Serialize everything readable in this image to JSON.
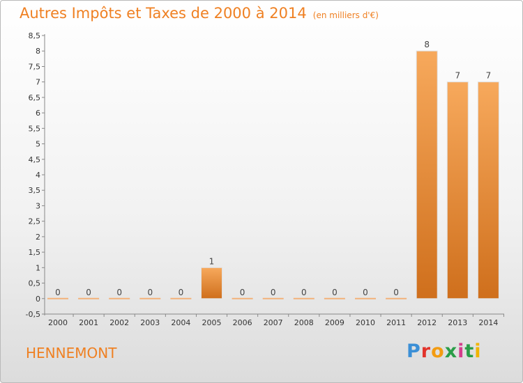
{
  "title": "Autres Impôts et Taxes de 2000 à 2014",
  "unit": "(en milliers d'€)",
  "commune": "HENNEMONT",
  "logo": {
    "letters": [
      "P",
      "r",
      "o",
      "x",
      "i",
      "t",
      "i"
    ],
    "colors": [
      "#3b8fd6",
      "#e2332b",
      "#f39c12",
      "#2a9d48",
      "#d43d8c",
      "#2a9d48",
      "#f0b400"
    ]
  },
  "colors": {
    "title": "#ef8022",
    "bar_top": "#f7a95c",
    "bar_bottom": "#cf6f1c",
    "axis": "#888888"
  },
  "chart_data": {
    "type": "bar",
    "categories": [
      "2000",
      "2001",
      "2002",
      "2003",
      "2004",
      "2005",
      "2006",
      "2007",
      "2008",
      "2009",
      "2010",
      "2011",
      "2012",
      "2013",
      "2014"
    ],
    "values": [
      0,
      0,
      0,
      0,
      0,
      1,
      0,
      0,
      0,
      0,
      0,
      0,
      8,
      7,
      7
    ],
    "data_labels": [
      "0",
      "0",
      "0",
      "0",
      "0",
      "1",
      "0",
      "0",
      "0",
      "0",
      "0",
      "0",
      "8",
      "7",
      "7"
    ],
    "y_ticks": [
      "-0,5",
      "0",
      "0,5",
      "1",
      "1,5",
      "2",
      "2,5",
      "3",
      "3,5",
      "4",
      "4,5",
      "5",
      "5,5",
      "6",
      "6,5",
      "7",
      "7,5",
      "8",
      "8,5"
    ],
    "ylim": [
      -0.5,
      8.5
    ],
    "grid": false,
    "legend": "none"
  }
}
